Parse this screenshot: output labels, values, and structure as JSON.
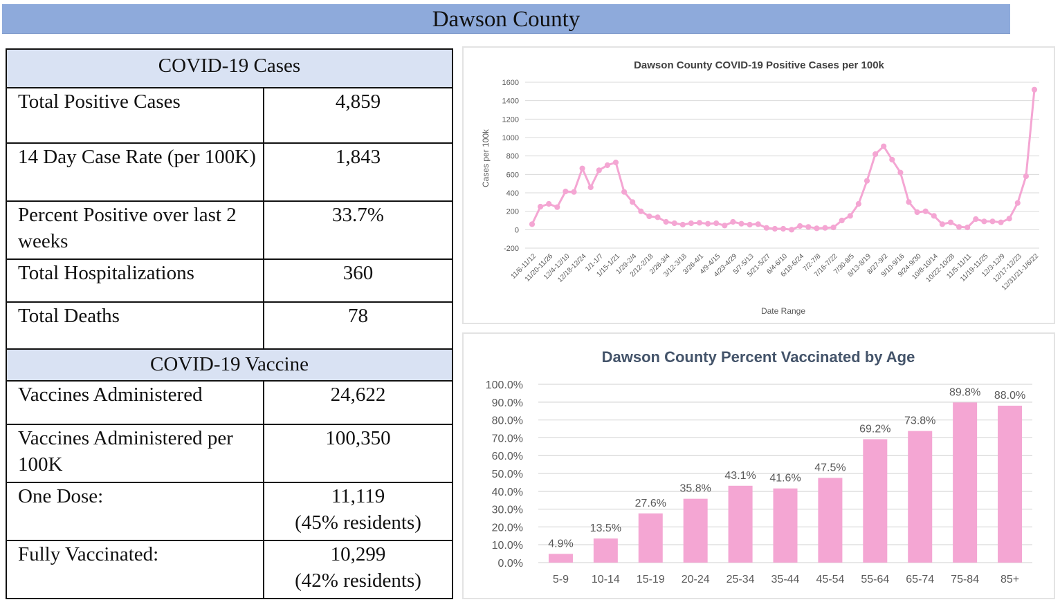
{
  "banner": {
    "title": "Dawson County"
  },
  "cases_table": {
    "header": "COVID-19 Cases",
    "rows": [
      {
        "label": "Total Positive Cases",
        "value": "4,859"
      },
      {
        "label": "14 Day Case Rate (per 100K)",
        "value": "1,843"
      },
      {
        "label": "Percent Positive over last 2 weeks",
        "value": "33.7%"
      },
      {
        "label": "Total Hospitalizations",
        "value": "360"
      },
      {
        "label": "Total Deaths",
        "value": "78"
      }
    ]
  },
  "vaccine_table": {
    "header": "COVID-19 Vaccine",
    "rows": [
      {
        "label": "Vaccines Administered",
        "value": "24,622",
        "sub": ""
      },
      {
        "label": "Vaccines Administered per 100K",
        "value": "100,350",
        "sub": ""
      },
      {
        "label": "One Dose:",
        "value": "11,119",
        "sub": "(45% residents)"
      },
      {
        "label": "Fully Vaccinated:",
        "value": "10,299",
        "sub": "(42% residents)"
      }
    ]
  },
  "colors": {
    "banner": "#8eaadb",
    "table_header": "#d9e2f3",
    "series": "#f4a6d3",
    "grid": "#d9d9d9",
    "axis_text": "#595959",
    "title_text": "#404040"
  },
  "chart_data": [
    {
      "type": "line",
      "title": "Dawson County COVID-19 Positive Cases per 100k",
      "xlabel": "Date Range",
      "ylabel": "Cases per 100k",
      "ylim": [
        -200,
        1600
      ],
      "yticks": [
        -200,
        0,
        200,
        400,
        600,
        800,
        1000,
        1200,
        1400,
        1600
      ],
      "grid": true,
      "legend": "none",
      "x_tick_labels": [
        "11/6-11/12",
        "11/20-11/26",
        "12/4-12/10",
        "12/18-12/24",
        "1/1-1/7",
        "1/15-1/21",
        "1/29-2/4",
        "2/12-2/18",
        "2/26-3/4",
        "3/12-3/18",
        "3/26-4/1",
        "4/9-4/15",
        "4/23-4/29",
        "5/7-5/13",
        "5/21-5/27",
        "6/4-6/10",
        "6/18-6/24",
        "7/2-7/8",
        "7/16-7/22",
        "7/30-8/5",
        "8/13-8/19",
        "8/27-9/2",
        "9/10-9/16",
        "9/24-9/30",
        "10/8-10/14",
        "10/22-10/28",
        "11/5-11/11",
        "11/19-11/25",
        "12/3-12/9",
        "12/17-12/23",
        "12/31/21-1/6/22"
      ],
      "series": [
        {
          "name": "Cases per 100k",
          "values": [
            60,
            250,
            280,
            245,
            415,
            410,
            665,
            460,
            645,
            700,
            730,
            410,
            300,
            200,
            145,
            135,
            85,
            70,
            55,
            70,
            75,
            65,
            70,
            45,
            85,
            65,
            55,
            60,
            20,
            10,
            10,
            0,
            40,
            30,
            15,
            20,
            25,
            100,
            150,
            280,
            530,
            820,
            905,
            760,
            620,
            300,
            190,
            200,
            150,
            60,
            80,
            30,
            25,
            115,
            90,
            90,
            80,
            120,
            290,
            580,
            1520
          ]
        }
      ]
    },
    {
      "type": "bar",
      "title": "Dawson County Percent Vaccinated by Age",
      "xlabel": "",
      "ylabel": "",
      "ylim": [
        0,
        100
      ],
      "yticks": [
        "0.0%",
        "10.0%",
        "20.0%",
        "30.0%",
        "40.0%",
        "50.0%",
        "60.0%",
        "70.0%",
        "80.0%",
        "90.0%",
        "100.0%"
      ],
      "grid": true,
      "legend": "none",
      "categories": [
        "5-9",
        "10-14",
        "15-19",
        "20-24",
        "25-34",
        "35-44",
        "45-54",
        "55-64",
        "65-74",
        "75-84",
        "85+"
      ],
      "values": [
        4.9,
        13.5,
        27.6,
        35.8,
        43.1,
        41.6,
        47.5,
        69.2,
        73.8,
        89.8,
        88.0
      ],
      "data_labels": [
        "4.9%",
        "13.5%",
        "27.6%",
        "35.8%",
        "43.1%",
        "41.6%",
        "47.5%",
        "69.2%",
        "73.8%",
        "89.8%",
        "88.0%"
      ]
    }
  ]
}
